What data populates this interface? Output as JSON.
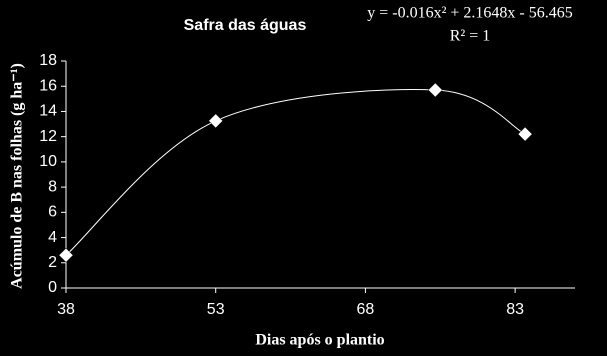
{
  "chart_data": {
    "type": "scatter",
    "title": "Safra das águas",
    "equation": "y = -0.016x² + 2.1648x - 56.465",
    "r_squared": "R² = 1",
    "x_label": "Dias após o plantio",
    "y_label": "Acúmulo de B nas folhas (g ha⁻¹)",
    "x": [
      38,
      53,
      75,
      84
    ],
    "values": [
      2.6,
      13.25,
      15.7,
      12.2
    ],
    "color": "#ffffff",
    "xlim": [
      38,
      89
    ],
    "xticks": [
      38,
      53,
      68,
      83
    ],
    "ylim": [
      0,
      18
    ],
    "yticks": [
      0,
      2,
      4,
      6,
      8,
      10,
      12,
      14,
      16,
      18
    ],
    "grid": false
  }
}
